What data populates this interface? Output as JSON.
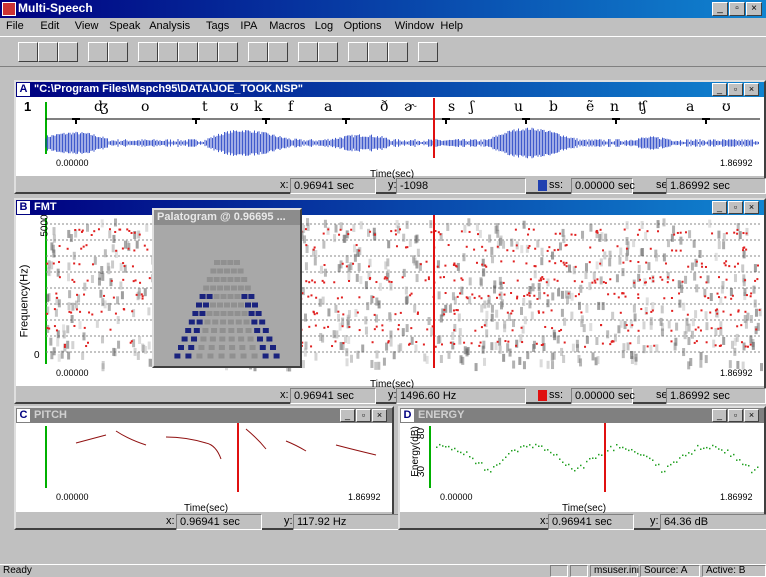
{
  "app": {
    "title": "Multi-Speech",
    "menu": [
      "File",
      "Edit",
      "View",
      "Speak",
      "Analysis",
      "Tags",
      "IPA",
      "Macros",
      "Log",
      "Options",
      "Window",
      "Help"
    ]
  },
  "windows": [
    {
      "letter": "A",
      "title": "\"C:\\Program Files\\Mspch95\\DATA\\JOE_TOOK.NSP\"",
      "tier": "1",
      "symbols": [
        "ʤ",
        "o",
        "t",
        "ʊ",
        "k",
        "f",
        "a",
        "ð",
        "ɚ",
        "s",
        "ʃ",
        "u",
        "b",
        "ẽ",
        "n",
        "ʧ",
        "a",
        "ʊ"
      ],
      "x_start": "0.00000",
      "x_end": "1.86992",
      "x_label": "Time(sec)",
      "fields": [
        {
          "label": "x:",
          "value": "0.96941 sec"
        },
        {
          "label": "y:",
          "value": "-1098"
        },
        {
          "label": "ss:",
          "value": "0.00000 sec"
        },
        {
          "label": "se:",
          "value": "1.86992 sec"
        }
      ]
    },
    {
      "letter": "B",
      "title": "FMT",
      "y_label": "Frequency(Hz)",
      "y_ticks": [
        "5000",
        "0"
      ],
      "x_start": "0.00000",
      "x_end": "1.86992",
      "x_label": "Time(sec)",
      "fields": [
        {
          "label": "x:",
          "value": "0.96941 sec"
        },
        {
          "label": "y:",
          "value": "1496.60 Hz"
        },
        {
          "label": "ss:",
          "value": "0.00000 sec"
        },
        {
          "label": "se:",
          "value": "1.86992 sec"
        }
      ]
    },
    {
      "letter": "C",
      "title": "PITCH",
      "x_start": "0.00000",
      "x_end": "1.86992",
      "x_label": "Time(sec)",
      "fields": [
        {
          "label": "x:",
          "value": "0.96941 sec"
        },
        {
          "label": "y:",
          "value": "117.92 Hz"
        }
      ]
    },
    {
      "letter": "D",
      "title": "ENERGY",
      "y_label": "Energy(dB)",
      "y_ticks": [
        "80",
        "30"
      ],
      "x_start": "0.00000",
      "x_end": "1.86992",
      "x_label": "Time(sec)",
      "fields": [
        {
          "label": "x:",
          "value": "0.96941 sec"
        },
        {
          "label": "y:",
          "value": "64.36 dB"
        }
      ]
    }
  ],
  "palatogram": {
    "title": "Palatogram @ 0.96695 ..."
  },
  "status_bar": [
    "Ready",
    "msuser.ini",
    "Source: A",
    "Active: B"
  ]
}
